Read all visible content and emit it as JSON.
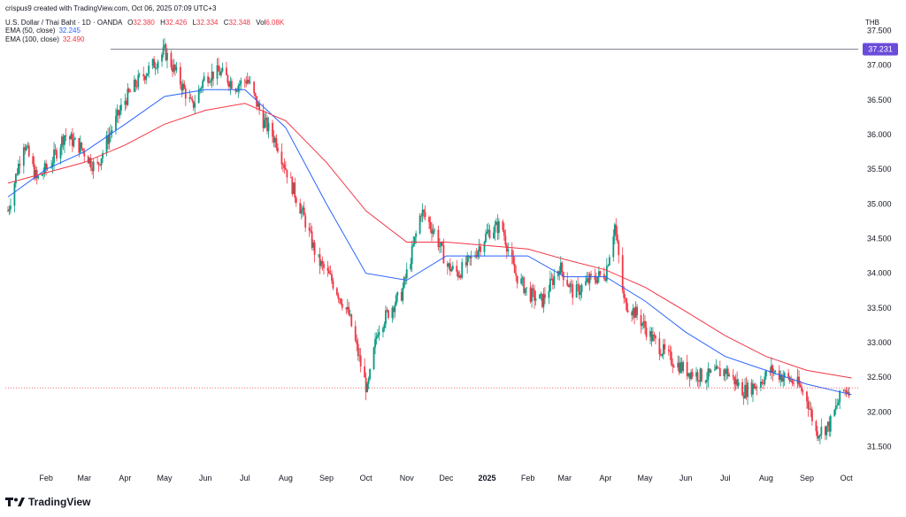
{
  "header": {
    "text": "crispus9 created with TradingView.com, Oct 06, 2025 07:09 UTC+3"
  },
  "legend": {
    "symbol": "U.S. Dollar / Thai Baht · 1D · OANDA",
    "ohlc": [
      {
        "label": "O",
        "value": "32.380"
      },
      {
        "label": "H",
        "value": "32.426"
      },
      {
        "label": "L",
        "value": "32.334"
      },
      {
        "label": "C",
        "value": "32.348"
      },
      {
        "label": "Vol",
        "value": "6.08K"
      }
    ],
    "ema50": {
      "label": "EMA (50, close)",
      "value": "32.245"
    },
    "ema100": {
      "label": "EMA (100, close)",
      "value": "32.490"
    }
  },
  "currency": "THB",
  "brand": {
    "name": "TradingView"
  },
  "colors": {
    "up": "#089981",
    "down": "#f23645",
    "ema50": "#2962ff",
    "ema100": "#f23645",
    "marker": "#6a4cdb"
  },
  "chart_data": {
    "type": "line",
    "title": "",
    "xlabel": "",
    "ylabel": "",
    "ylim": [
      31.2,
      37.75
    ],
    "y_ticks": [
      "31.500",
      "32.000",
      "32.500",
      "33.000",
      "33.500",
      "34.000",
      "34.500",
      "35.000",
      "35.500",
      "36.000",
      "36.500",
      "37.000",
      "37.500"
    ],
    "x_ticks": [
      "Feb",
      "Mar",
      "Apr",
      "May",
      "Jun",
      "Jul",
      "Aug",
      "Sep",
      "Oct",
      "Nov",
      "Dec",
      "2025",
      "Feb",
      "Mar",
      "Apr",
      "May",
      "Jun",
      "Jul",
      "Aug",
      "Sep",
      "Oct"
    ],
    "period": "2024-01 to 2025-10",
    "price_markers": [
      {
        "value": 37.231,
        "label": "37.231"
      },
      {
        "value": 32.348,
        "label": ""
      }
    ],
    "price_path": [
      [
        "2024-01-03",
        34.9
      ],
      [
        "2024-01-15",
        35.9
      ],
      [
        "2024-01-25",
        35.35
      ],
      [
        "2024-02-05",
        35.6
      ],
      [
        "2024-02-15",
        36.0
      ],
      [
        "2024-02-28",
        35.8
      ],
      [
        "2024-03-10",
        35.5
      ],
      [
        "2024-03-20",
        36.0
      ],
      [
        "2024-04-01",
        36.5
      ],
      [
        "2024-04-12",
        36.8
      ],
      [
        "2024-04-22",
        37.0
      ],
      [
        "2024-05-01",
        37.2
      ],
      [
        "2024-05-12",
        36.8
      ],
      [
        "2024-05-22",
        36.4
      ],
      [
        "2024-06-01",
        36.85
      ],
      [
        "2024-06-12",
        36.9
      ],
      [
        "2024-06-24",
        36.7
      ],
      [
        "2024-07-03",
        36.8
      ],
      [
        "2024-07-15",
        36.2
      ],
      [
        "2024-07-25",
        35.9
      ],
      [
        "2024-08-05",
        35.3
      ],
      [
        "2024-08-15",
        34.8
      ],
      [
        "2024-08-25",
        34.2
      ],
      [
        "2024-09-05",
        33.9
      ],
      [
        "2024-09-18",
        33.4
      ],
      [
        "2024-09-28",
        32.6
      ],
      [
        "2024-10-02",
        32.3
      ],
      [
        "2024-10-10",
        33.2
      ],
      [
        "2024-10-20",
        33.5
      ],
      [
        "2024-10-28",
        33.7
      ],
      [
        "2024-11-05",
        34.3
      ],
      [
        "2024-11-12",
        34.9
      ],
      [
        "2024-11-22",
        34.6
      ],
      [
        "2024-12-02",
        34.1
      ],
      [
        "2024-12-10",
        34.0
      ],
      [
        "2024-12-20",
        34.2
      ],
      [
        "2025-01-02",
        34.6
      ],
      [
        "2025-01-12",
        34.7
      ],
      [
        "2025-01-22",
        34.0
      ],
      [
        "2025-02-02",
        33.7
      ],
      [
        "2025-02-12",
        33.6
      ],
      [
        "2025-02-25",
        34.1
      ],
      [
        "2025-03-08",
        33.7
      ],
      [
        "2025-03-20",
        33.9
      ],
      [
        "2025-04-01",
        34.0
      ],
      [
        "2025-04-08",
        34.7
      ],
      [
        "2025-04-15",
        33.6
      ],
      [
        "2025-04-25",
        33.4
      ],
      [
        "2025-05-05",
        33.1
      ],
      [
        "2025-05-18",
        32.8
      ],
      [
        "2025-06-01",
        32.6
      ],
      [
        "2025-06-15",
        32.5
      ],
      [
        "2025-07-01",
        32.6
      ],
      [
        "2025-07-15",
        32.3
      ],
      [
        "2025-07-25",
        32.4
      ],
      [
        "2025-08-05",
        32.6
      ],
      [
        "2025-08-15",
        32.5
      ],
      [
        "2025-08-25",
        32.4
      ],
      [
        "2025-09-01",
        32.2
      ],
      [
        "2025-09-08",
        31.7
      ],
      [
        "2025-09-18",
        31.8
      ],
      [
        "2025-09-28",
        32.3
      ],
      [
        "2025-10-05",
        32.35
      ]
    ],
    "series": [
      {
        "name": "EMA (50, close)",
        "color": "#2962ff",
        "values": [
          [
            "2024-01-03",
            35.1
          ],
          [
            "2024-02-01",
            35.5
          ],
          [
            "2024-03-01",
            35.75
          ],
          [
            "2024-04-01",
            36.15
          ],
          [
            "2024-05-01",
            36.55
          ],
          [
            "2024-06-01",
            36.65
          ],
          [
            "2024-07-01",
            36.65
          ],
          [
            "2024-08-01",
            36.1
          ],
          [
            "2024-09-01",
            35.0
          ],
          [
            "2024-10-01",
            34.0
          ],
          [
            "2024-11-01",
            33.9
          ],
          [
            "2024-12-01",
            34.25
          ],
          [
            "2025-01-01",
            34.25
          ],
          [
            "2025-02-01",
            34.25
          ],
          [
            "2025-03-01",
            33.95
          ],
          [
            "2025-04-01",
            33.95
          ],
          [
            "2025-05-01",
            33.6
          ],
          [
            "2025-06-01",
            33.15
          ],
          [
            "2025-07-01",
            32.8
          ],
          [
            "2025-08-01",
            32.6
          ],
          [
            "2025-09-01",
            32.4
          ],
          [
            "2025-10-05",
            32.25
          ]
        ]
      },
      {
        "name": "EMA (100, close)",
        "color": "#f23645",
        "values": [
          [
            "2024-01-03",
            35.3
          ],
          [
            "2024-02-01",
            35.45
          ],
          [
            "2024-03-01",
            35.6
          ],
          [
            "2024-04-01",
            35.85
          ],
          [
            "2024-05-01",
            36.15
          ],
          [
            "2024-06-01",
            36.35
          ],
          [
            "2024-07-01",
            36.45
          ],
          [
            "2024-08-01",
            36.2
          ],
          [
            "2024-09-01",
            35.6
          ],
          [
            "2024-10-01",
            34.9
          ],
          [
            "2024-11-01",
            34.45
          ],
          [
            "2024-12-01",
            34.45
          ],
          [
            "2025-01-01",
            34.4
          ],
          [
            "2025-02-01",
            34.35
          ],
          [
            "2025-03-01",
            34.2
          ],
          [
            "2025-04-01",
            34.05
          ],
          [
            "2025-05-01",
            33.8
          ],
          [
            "2025-06-01",
            33.45
          ],
          [
            "2025-07-01",
            33.1
          ],
          [
            "2025-08-01",
            32.8
          ],
          [
            "2025-09-01",
            32.6
          ],
          [
            "2025-10-05",
            32.49
          ]
        ]
      }
    ]
  }
}
